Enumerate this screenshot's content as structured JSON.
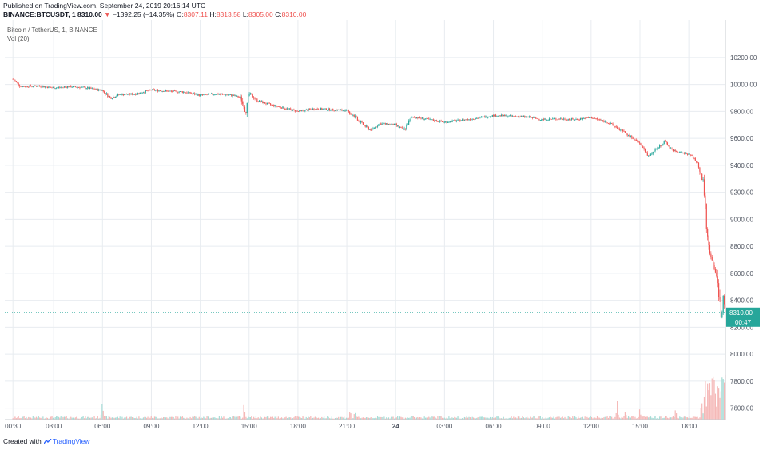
{
  "header": {
    "published_text": "Published on TradingView.com, September 24, 2019 20:16:14 UTC",
    "symbol": "BINANCE:BTCUSDT, 1",
    "last": "8310.00",
    "change": "−1392.25 (−14.35%)",
    "o_label": "O:",
    "o_value": "8307.11",
    "h_label": "H:",
    "h_value": "8313.58",
    "l_label": "L:",
    "l_value": "8305.00",
    "c_label": "C:",
    "c_value": "8310.00"
  },
  "legend": {
    "series_title": "Bitcoin / TetherUS, 1, BINANCE",
    "volume_title": "Vol (20)"
  },
  "price_tag": {
    "price": "8310.00",
    "countdown": "00:47"
  },
  "footer": {
    "created_with": "Created with",
    "brand": "TradingView"
  },
  "colors": {
    "up": "#26a69a",
    "down": "#ef5350",
    "grid": "#e8ecf0",
    "axis_text": "#4c525e",
    "price_line": "#26a69a"
  },
  "chart_data": {
    "type": "candlestick",
    "y_ticks": [
      "10200.00",
      "10000.00",
      "9800.00",
      "9600.00",
      "9400.00",
      "9200.00",
      "9000.00",
      "8800.00",
      "8600.00",
      "8400.00",
      "8200.00",
      "8000.00",
      "7800.00",
      "7600.00"
    ],
    "x_ticks": [
      "00:30",
      "03:00",
      "06:00",
      "09:00",
      "12:00",
      "15:00",
      "18:00",
      "21:00",
      "24",
      "03:00",
      "06:00",
      "09:00",
      "12:00",
      "15:00",
      "18:00"
    ],
    "ylim": [
      7550,
      10330
    ],
    "x_range_hours": [
      0,
      44.25
    ],
    "last_price": 8310,
    "price_path": [
      [
        0.5,
        10040
      ],
      [
        1.0,
        9985
      ],
      [
        2.0,
        9990
      ],
      [
        3.0,
        9975
      ],
      [
        4.0,
        9985
      ],
      [
        5.0,
        9975
      ],
      [
        6.0,
        9955
      ],
      [
        6.5,
        9900
      ],
      [
        7.0,
        9925
      ],
      [
        8.0,
        9930
      ],
      [
        9.0,
        9960
      ],
      [
        10.0,
        9950
      ],
      [
        11.0,
        9945
      ],
      [
        12.0,
        9920
      ],
      [
        13.0,
        9930
      ],
      [
        14.0,
        9920
      ],
      [
        14.5,
        9900
      ],
      [
        14.8,
        9780
      ],
      [
        15.0,
        9935
      ],
      [
        15.5,
        9880
      ],
      [
        16.0,
        9860
      ],
      [
        17.0,
        9830
      ],
      [
        18.0,
        9800
      ],
      [
        19.0,
        9820
      ],
      [
        20.0,
        9815
      ],
      [
        21.0,
        9805
      ],
      [
        21.5,
        9760
      ],
      [
        22.0,
        9700
      ],
      [
        22.5,
        9660
      ],
      [
        23.0,
        9710
      ],
      [
        24.0,
        9700
      ],
      [
        24.5,
        9660
      ],
      [
        25.0,
        9760
      ],
      [
        26.0,
        9740
      ],
      [
        27.0,
        9720
      ],
      [
        28.0,
        9735
      ],
      [
        29.0,
        9750
      ],
      [
        30.0,
        9770
      ],
      [
        31.0,
        9765
      ],
      [
        32.0,
        9760
      ],
      [
        33.0,
        9740
      ],
      [
        34.0,
        9745
      ],
      [
        35.0,
        9740
      ],
      [
        36.0,
        9755
      ],
      [
        37.0,
        9720
      ],
      [
        38.0,
        9650
      ],
      [
        39.0,
        9560
      ],
      [
        39.5,
        9470
      ],
      [
        40.0,
        9520
      ],
      [
        40.5,
        9575
      ],
      [
        41.0,
        9510
      ],
      [
        42.0,
        9480
      ],
      [
        42.3,
        9460
      ],
      [
        42.6,
        9400
      ],
      [
        42.9,
        9270
      ],
      [
        43.1,
        8920
      ],
      [
        43.3,
        8740
      ],
      [
        43.6,
        8620
      ],
      [
        43.8,
        8500
      ],
      [
        44.0,
        8250
      ],
      [
        44.1,
        8420
      ],
      [
        44.25,
        8310
      ]
    ],
    "volume_spikes": [
      {
        "x": 6.0,
        "vol": 0.55
      },
      {
        "x": 14.7,
        "vol": 0.4
      },
      {
        "x": 21.2,
        "vol": 0.3
      },
      {
        "x": 21.5,
        "vol": 0.28
      },
      {
        "x": 37.6,
        "vol": 0.45
      },
      {
        "x": 38.1,
        "vol": 0.33
      },
      {
        "x": 39.0,
        "vol": 0.28
      },
      {
        "x": 41.2,
        "vol": 0.3
      },
      {
        "x": 42.8,
        "vol": 0.45
      },
      {
        "x": 43.2,
        "vol": 0.9
      },
      {
        "x": 43.5,
        "vol": 0.7
      },
      {
        "x": 43.8,
        "vol": 0.55
      },
      {
        "x": 44.0,
        "vol": 0.6
      }
    ]
  }
}
